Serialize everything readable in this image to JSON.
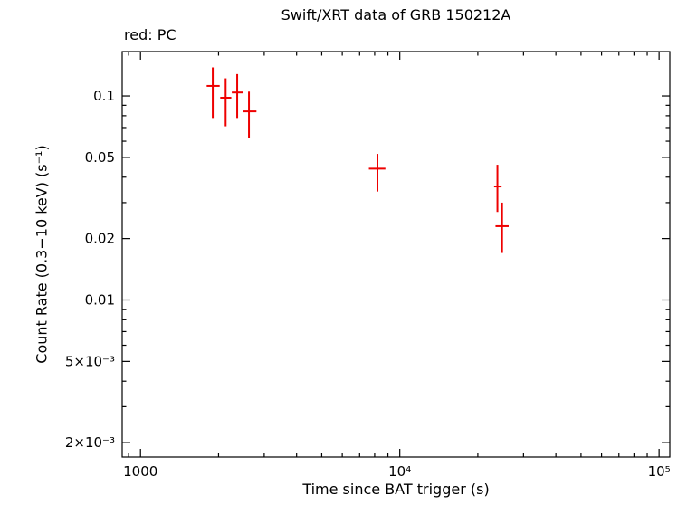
{
  "chart_data": {
    "type": "scatter",
    "title": "Swift/XRT data of GRB 150212A",
    "mode_label": "red: PC",
    "xlabel": "Time since BAT trigger (s)",
    "ylabel": "Count Rate (0.3−10 keV) (s⁻¹)",
    "x_scale": "log",
    "y_scale": "log",
    "grid": false,
    "xlim": [
      850,
      110000
    ],
    "ylim": [
      0.0017,
      0.165
    ],
    "frame_color": "#000000",
    "x_ticks": [
      {
        "v": 1000,
        "label": "1000"
      },
      {
        "v": 10000,
        "label": "10⁴"
      },
      {
        "v": 100000,
        "label": "10⁵"
      }
    ],
    "y_ticks": [
      {
        "v": 0.002,
        "label": "2×10⁻³"
      },
      {
        "v": 0.005,
        "label": "5×10⁻³"
      },
      {
        "v": 0.01,
        "label": "0.01"
      },
      {
        "v": 0.02,
        "label": "0.02"
      },
      {
        "v": 0.05,
        "label": "0.05"
      },
      {
        "v": 0.1,
        "label": "0.1"
      }
    ],
    "series": [
      {
        "name": "PC",
        "color": "#ee0000",
        "marker": "cross-with-error-bars",
        "points": [
          {
            "x": 1900,
            "x_lo": 1800,
            "x_hi": 2020,
            "y": 0.112,
            "y_lo": 0.078,
            "y_hi": 0.138
          },
          {
            "x": 2130,
            "x_lo": 2030,
            "x_hi": 2240,
            "y": 0.098,
            "y_lo": 0.071,
            "y_hi": 0.122
          },
          {
            "x": 2360,
            "x_lo": 2250,
            "x_hi": 2480,
            "y": 0.104,
            "y_lo": 0.078,
            "y_hi": 0.128
          },
          {
            "x": 2620,
            "x_lo": 2490,
            "x_hi": 2800,
            "y": 0.084,
            "y_lo": 0.062,
            "y_hi": 0.105
          },
          {
            "x": 8200,
            "x_lo": 7600,
            "x_hi": 8800,
            "y": 0.044,
            "y_lo": 0.034,
            "y_hi": 0.052
          },
          {
            "x": 23800,
            "x_lo": 23100,
            "x_hi": 24700,
            "y": 0.036,
            "y_lo": 0.027,
            "y_hi": 0.046
          },
          {
            "x": 24800,
            "x_lo": 23400,
            "x_hi": 26300,
            "y": 0.023,
            "y_lo": 0.017,
            "y_hi": 0.03
          }
        ]
      }
    ]
  }
}
